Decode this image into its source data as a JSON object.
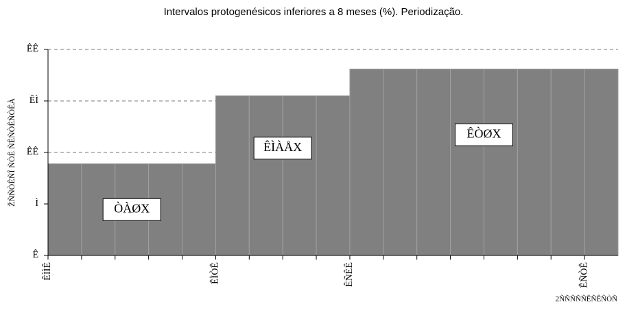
{
  "chart_data": {
    "type": "bar",
    "title": "Intervalos protogenésicos inferiores a 8 meses (%). Periodização.",
    "y_label": "ŽÑÑÒÊÑÎ ÑÒÊ ÑÊÑÒÊÑÒÊÀ",
    "x_label": "2ÑÑÑÑÑÊÑÊÑÒÑ",
    "categories": [
      "ÊÌÌÊ",
      null,
      null,
      null,
      null,
      "ÊÌÒÊ",
      null,
      null,
      null,
      "ÊÑÊÊ",
      null,
      null,
      null,
      null,
      null,
      null,
      "ÊÑÒÊ"
    ],
    "values": [
      8.9,
      8.9,
      8.9,
      8.9,
      8.9,
      15.5,
      15.5,
      15.5,
      15.5,
      18.1,
      18.1,
      18.1,
      18.1,
      18.1,
      18.1,
      18.1,
      18.1
    ],
    "value_labels": [
      null,
      null,
      "ÒÀØX",
      null,
      null,
      null,
      null,
      "ÊÌÀÅX",
      null,
      null,
      null,
      null,
      "ÊÒØX",
      null,
      null,
      null,
      null
    ],
    "color": "#808080",
    "ylim": [
      0,
      20
    ],
    "yticks": [
      {
        "value": 0,
        "label": "Ê"
      },
      {
        "value": 5,
        "label": "Ì"
      },
      {
        "value": 10,
        "label": "ÊÊ"
      },
      {
        "value": 15,
        "label": "ÊÌ"
      },
      {
        "value": 20,
        "label": "ÊÊ"
      }
    ],
    "grid": true
  }
}
